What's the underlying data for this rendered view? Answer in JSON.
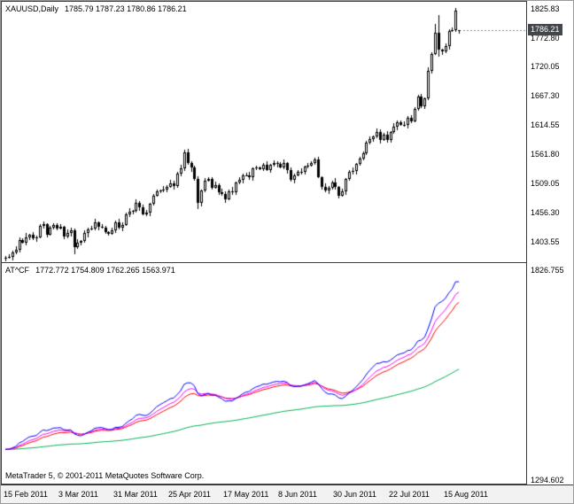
{
  "main_chart": {
    "header_symbol": "XAUUSD,Daily",
    "header_ohlc": "1785.79 1787.23 1780.86 1786.21",
    "price_badge": "1786.21",
    "axis_labels": [
      "1825.83",
      "1772.80",
      "1720.05",
      "1667.30",
      "1614.55",
      "1561.80",
      "1509.05",
      "1456.30",
      "1403.55"
    ]
  },
  "indicator": {
    "header_name": "AT^CF",
    "header_values": "1772.772 1754.809 1762.265 1563.971",
    "axis_labels": [
      "1826.755",
      "1294.602"
    ],
    "footer": "MetaTrader 5, © 2001-2011 MetaQuotes Software Corp."
  },
  "time_axis": {
    "labels": [
      {
        "text": "15 Feb 2011",
        "bar": 0
      },
      {
        "text": "3 Mar 2011",
        "bar": 16
      },
      {
        "text": "31 Mar 2011",
        "bar": 32
      },
      {
        "text": "25 Apr 2011",
        "bar": 48
      },
      {
        "text": "17 May 2011",
        "bar": 64
      },
      {
        "text": "8 Jun 2011",
        "bar": 80
      },
      {
        "text": "30 Jun 2011",
        "bar": 96
      },
      {
        "text": "22 Jul 2011",
        "bar": 112
      },
      {
        "text": "15 Aug 2011",
        "bar": 128
      }
    ]
  },
  "chart_data": {
    "type": "candlestick",
    "title": "XAUUSD Daily with AT^CF indicator",
    "bar_count": 133,
    "main_scale": {
      "min": 1366,
      "max": 1838
    },
    "indicator_scale": {
      "min": 1290,
      "max": 1832
    },
    "colors": {
      "candle": "#000000",
      "candle_up_fill": "#ffffff",
      "background": "#ffffff",
      "badge_bg": "#43474b",
      "badge_text": "#ffffff"
    },
    "ohlc": {
      "open": [
        1371.8,
        1374.3,
        1375.0,
        1384.1,
        1388.9,
        1406.3,
        1401.2,
        1411.4,
        1415.8,
        1409.9,
        1411.2,
        1431.1,
        1434.3,
        1416.4,
        1428.2,
        1434.1,
        1427.3,
        1429.6,
        1412.3,
        1419.2,
        1424.1,
        1393.3,
        1401.2,
        1404.3,
        1418.4,
        1426.1,
        1427.4,
        1438.2,
        1430.4,
        1429.3,
        1419.8,
        1417.9,
        1423.8,
        1438.9,
        1428.4,
        1433.9,
        1452.4,
        1457.3,
        1459.1,
        1474.3,
        1466.1,
        1453.4,
        1455.3,
        1472.1,
        1486.3,
        1495.1,
        1495.3,
        1498.4,
        1503.2,
        1509.1,
        1503.3,
        1526.1,
        1536.2,
        1565.8,
        1545.3,
        1537.1,
        1516.3,
        1473.2,
        1495.4,
        1514.2,
        1517.1,
        1501.3,
        1506.4,
        1493.2,
        1490.1,
        1480.3,
        1495.2,
        1492.4,
        1510.1,
        1515.3,
        1523.2,
        1523.4,
        1520.1,
        1536.3,
        1537.1,
        1535.2,
        1543.3,
        1533.1,
        1542.4,
        1545.2,
        1544.1,
        1538.3,
        1545.1,
        1532.2,
        1515.4,
        1524.1,
        1529.3,
        1530.2,
        1539.1,
        1541.4,
        1546.2,
        1552.3,
        1520.1,
        1502.4,
        1496.3,
        1500.2,
        1511.1,
        1502.3,
        1487.1,
        1494.4,
        1516.2,
        1529.3,
        1531.1,
        1544.2,
        1553.4,
        1564.1,
        1582.3,
        1589.2,
        1594.1,
        1602.4,
        1587.2,
        1597.3,
        1587.1,
        1601.2,
        1612.4,
        1619.3,
        1615.1,
        1615.2,
        1628.3,
        1621.4,
        1644.2,
        1666.3,
        1648.1,
        1663.4,
        1713.2,
        1743.1,
        1781.3,
        1751.2,
        1747.4,
        1758.1,
        1785.3,
        1787.2,
        1785.79
      ],
      "high": [
        1377.3,
        1380.0,
        1386.1,
        1394.9,
        1410.3,
        1409.3,
        1418.4,
        1417.8,
        1420.8,
        1414.2,
        1435.1,
        1440.3,
        1436.3,
        1432.2,
        1437.1,
        1437.1,
        1434.6,
        1431.6,
        1425.2,
        1428.1,
        1427.1,
        1408.2,
        1406.3,
        1423.4,
        1429.1,
        1431.4,
        1444.2,
        1440.2,
        1434.4,
        1432.3,
        1422.8,
        1428.8,
        1440.9,
        1444.9,
        1437.9,
        1455.4,
        1464.3,
        1461.1,
        1479.3,
        1477.3,
        1470.1,
        1461.3,
        1474.1,
        1490.3,
        1498.1,
        1498.3,
        1503.4,
        1505.2,
        1515.1,
        1513.1,
        1529.1,
        1543.2,
        1569.6,
        1570.8,
        1548.3,
        1541.1,
        1522.3,
        1497.4,
        1518.2,
        1520.1,
        1520.1,
        1511.4,
        1508.4,
        1499.2,
        1494.1,
        1498.2,
        1502.2,
        1512.1,
        1520.3,
        1526.2,
        1527.4,
        1529.4,
        1538.3,
        1541.1,
        1540.1,
        1546.3,
        1548.3,
        1544.4,
        1551.2,
        1549.2,
        1547.1,
        1552.1,
        1547.1,
        1537.2,
        1527.1,
        1533.3,
        1536.2,
        1541.1,
        1545.4,
        1549.2,
        1555.3,
        1557.3,
        1522.1,
        1508.4,
        1504.2,
        1514.1,
        1518.1,
        1504.3,
        1499.4,
        1519.2,
        1533.3,
        1537.1,
        1546.2,
        1557.4,
        1567.1,
        1585.3,
        1594.2,
        1596.1,
        1608.4,
        1606.4,
        1600.3,
        1604.3,
        1603.2,
        1617.4,
        1622.3,
        1623.3,
        1621.2,
        1630.3,
        1632.3,
        1647.2,
        1669.3,
        1671.3,
        1665.4,
        1719.2,
        1747.1,
        1797.6,
        1813.9,
        1753.2,
        1763.1,
        1788.3,
        1791.2,
        1826.4,
        1787.23
      ],
      "low": [
        1367.8,
        1372.3,
        1370.0,
        1381.1,
        1382.9,
        1399.2,
        1397.2,
        1406.4,
        1406.9,
        1402.9,
        1409.2,
        1427.1,
        1410.4,
        1413.4,
        1426.2,
        1423.3,
        1425.3,
        1407.3,
        1409.3,
        1413.2,
        1380.3,
        1389.3,
        1396.2,
        1401.3,
        1411.4,
        1424.1,
        1423.4,
        1424.4,
        1426.3,
        1417.8,
        1413.9,
        1415.9,
        1418.8,
        1425.4,
        1422.4,
        1431.9,
        1448.4,
        1452.3,
        1456.1,
        1459.1,
        1451.4,
        1449.4,
        1449.3,
        1469.1,
        1484.3,
        1491.1,
        1493.3,
        1493.4,
        1500.2,
        1497.3,
        1501.3,
        1522.1,
        1531.2,
        1542.3,
        1530.1,
        1514.3,
        1462.4,
        1467.2,
        1492.4,
        1512.2,
        1497.3,
        1499.3,
        1488.2,
        1487.1,
        1474.3,
        1478.3,
        1488.4,
        1487.4,
        1507.1,
        1508.3,
        1521.2,
        1516.1,
        1514.1,
        1533.3,
        1533.2,
        1531.2,
        1531.1,
        1528.1,
        1539.4,
        1538.1,
        1536.3,
        1534.3,
        1527.2,
        1512.4,
        1508.4,
        1522.1,
        1525.3,
        1524.2,
        1536.1,
        1539.4,
        1542.2,
        1518.1,
        1497.4,
        1493.3,
        1490.3,
        1498.2,
        1498.3,
        1482.1,
        1484.1,
        1487.4,
        1514.2,
        1525.3,
        1525.1,
        1541.2,
        1551.4,
        1560.1,
        1580.3,
        1584.2,
        1591.1,
        1581.2,
        1585.2,
        1583.1,
        1582.1,
        1598.2,
        1605.4,
        1613.1,
        1611.1,
        1609.2,
        1618.4,
        1619.4,
        1640.2,
        1646.1,
        1643.1,
        1660.4,
        1707.2,
        1741.1,
        1738.2,
        1742.4,
        1744.4,
        1751.1,
        1783.3,
        1783.2,
        1780.86
      ],
      "close": [
        1374.3,
        1375.0,
        1384.1,
        1388.9,
        1406.3,
        1401.2,
        1411.4,
        1415.8,
        1409.9,
        1411.2,
        1431.1,
        1434.3,
        1416.4,
        1428.2,
        1434.1,
        1427.3,
        1429.6,
        1412.3,
        1419.2,
        1424.1,
        1393.3,
        1401.2,
        1404.3,
        1418.4,
        1426.1,
        1427.4,
        1438.2,
        1430.4,
        1429.3,
        1419.8,
        1417.9,
        1423.8,
        1438.9,
        1428.4,
        1433.9,
        1452.4,
        1457.3,
        1459.1,
        1474.3,
        1466.1,
        1453.4,
        1455.3,
        1472.1,
        1486.3,
        1495.1,
        1495.3,
        1498.4,
        1503.2,
        1509.1,
        1503.3,
        1526.1,
        1536.2,
        1565.8,
        1545.3,
        1537.1,
        1516.3,
        1473.2,
        1495.4,
        1514.2,
        1517.1,
        1501.3,
        1506.4,
        1493.2,
        1490.1,
        1480.3,
        1495.2,
        1492.4,
        1510.1,
        1515.3,
        1523.2,
        1523.4,
        1520.1,
        1536.3,
        1537.1,
        1535.2,
        1543.3,
        1533.1,
        1542.4,
        1545.2,
        1544.1,
        1538.3,
        1545.1,
        1532.2,
        1515.4,
        1524.1,
        1529.3,
        1530.2,
        1539.1,
        1541.4,
        1546.2,
        1552.3,
        1520.1,
        1502.4,
        1496.3,
        1500.2,
        1511.1,
        1502.3,
        1487.1,
        1494.4,
        1516.2,
        1529.3,
        1531.1,
        1544.2,
        1553.4,
        1564.1,
        1582.3,
        1589.2,
        1594.1,
        1602.4,
        1587.2,
        1597.3,
        1587.1,
        1601.2,
        1612.4,
        1619.3,
        1615.1,
        1615.2,
        1628.3,
        1621.4,
        1644.2,
        1666.3,
        1648.1,
        1663.4,
        1713.2,
        1743.1,
        1781.3,
        1751.2,
        1747.4,
        1758.1,
        1785.3,
        1787.2,
        1822.4,
        1786.21
      ]
    },
    "indicator_lines": [
      {
        "name": "green-line",
        "color": "#00b050",
        "ema_period": 100,
        "display_value": "1563.971"
      },
      {
        "name": "red-line",
        "color": "#ff0000",
        "ema_period": 15,
        "display_value": "1754.809"
      },
      {
        "name": "magenta-line",
        "color": "#ff00ff",
        "ema_period": 10,
        "display_value": "1762.265"
      },
      {
        "name": "blue-line",
        "color": "#0000ff",
        "ema_period": 5,
        "display_value": "1772.772"
      }
    ]
  }
}
